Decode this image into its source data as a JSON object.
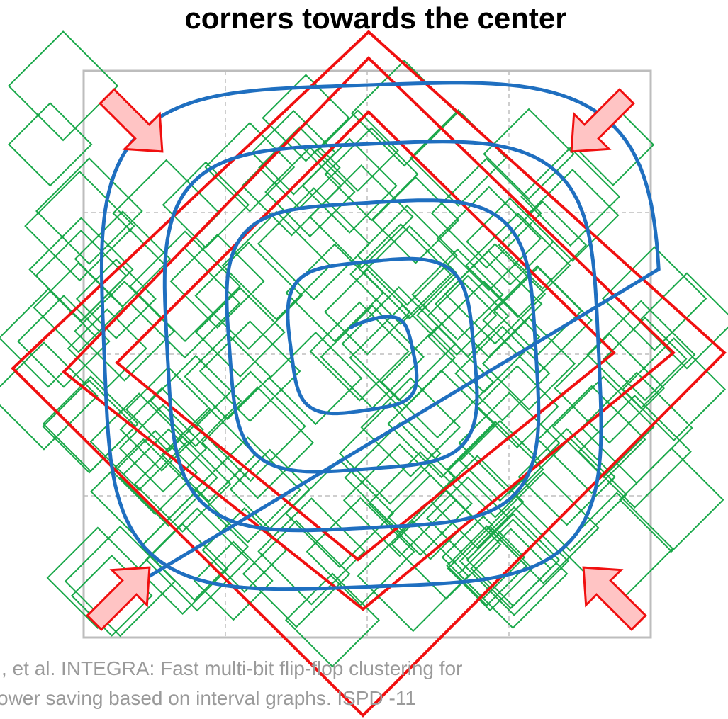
{
  "title": "corners towards the center",
  "citation": [
    ", et al. INTEGRA: Fast multi-bit flip-flop clustering for",
    "ower saving based on interval graphs. ISPD -11"
  ]
}
